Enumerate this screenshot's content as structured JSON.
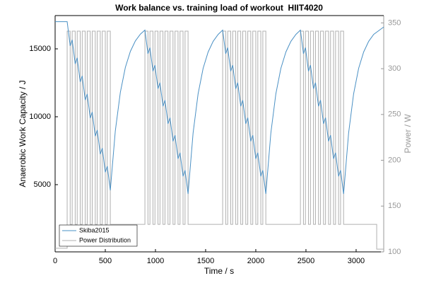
{
  "chart_data": {
    "type": "line",
    "title": "Work balance vs. training load of workout  HIIT4020",
    "x_label": "Time / s",
    "y_label": "Anaerobic Work Capacity / J",
    "y2_label": "Power / W",
    "xlim": [
      0,
      3275
    ],
    "xticks": [
      0,
      500,
      1000,
      1500,
      2000,
      2500,
      3000
    ],
    "ylim": [
      50,
      17450
    ],
    "yticks": [
      5000,
      10000,
      15000
    ],
    "y2lim": [
      100,
      358
    ],
    "y2ticks": [
      100,
      150,
      200,
      250,
      300,
      350
    ],
    "legend": "lower left",
    "series": [
      {
        "name": "Skiba2015",
        "color": "#4a90c4",
        "x": [
          0,
          120,
          150,
          170,
          200,
          220,
          250,
          270,
          300,
          320,
          350,
          370,
          400,
          420,
          450,
          470,
          500,
          520,
          550,
          600,
          650,
          700,
          750,
          800,
          850,
          895,
          925,
          945,
          975,
          995,
          1025,
          1045,
          1075,
          1095,
          1125,
          1145,
          1175,
          1195,
          1225,
          1245,
          1275,
          1295,
          1325,
          1375,
          1425,
          1475,
          1525,
          1575,
          1625,
          1670,
          1700,
          1720,
          1750,
          1770,
          1800,
          1820,
          1850,
          1870,
          1900,
          1920,
          1950,
          1970,
          2000,
          2020,
          2050,
          2070,
          2100,
          2150,
          2200,
          2250,
          2300,
          2350,
          2400,
          2445,
          2475,
          2495,
          2525,
          2545,
          2575,
          2595,
          2625,
          2645,
          2675,
          2695,
          2725,
          2745,
          2775,
          2795,
          2825,
          2845,
          2875,
          2925,
          2975,
          3025,
          3075,
          3125,
          3175,
          3275
        ],
        "values": [
          17000,
          17000,
          15220,
          15670,
          13890,
          14340,
          12560,
          13010,
          11230,
          11680,
          9900,
          10350,
          8570,
          9020,
          7240,
          7690,
          5910,
          6360,
          4580,
          8964,
          11796,
          13634,
          14814,
          15584,
          16085,
          16380,
          14640,
          15090,
          13350,
          13800,
          12060,
          12510,
          10770,
          11220,
          9480,
          9930,
          8190,
          8640,
          6900,
          7350,
          5610,
          6060,
          4320,
          8796,
          11687,
          13564,
          14768,
          15554,
          16065,
          16380,
          14640,
          15090,
          13350,
          13800,
          12060,
          12510,
          10770,
          11220,
          9480,
          9930,
          8190,
          8640,
          6900,
          7350,
          5610,
          6060,
          4320,
          8796,
          11687,
          13564,
          14768,
          15554,
          16065,
          16380,
          14640,
          15090,
          13350,
          13800,
          12060,
          12510,
          10770,
          11220,
          9480,
          9930,
          8190,
          8640,
          6900,
          7350,
          5610,
          6060,
          4320,
          8796,
          11687,
          13564,
          14768,
          15554,
          16065,
          16610
        ]
      },
      {
        "name": "Power Distribution",
        "color": "#b0b0b0",
        "axis": "y2",
        "step": true,
        "x": [
          0,
          120,
          150,
          170,
          200,
          220,
          250,
          270,
          300,
          320,
          350,
          370,
          400,
          420,
          450,
          470,
          500,
          520,
          550,
          895,
          925,
          945,
          975,
          995,
          1025,
          1045,
          1075,
          1095,
          1125,
          1145,
          1175,
          1195,
          1225,
          1245,
          1275,
          1295,
          1325,
          1670,
          1700,
          1720,
          1750,
          1770,
          1800,
          1820,
          1850,
          1870,
          1900,
          1920,
          1950,
          1970,
          2000,
          2020,
          2050,
          2070,
          2100,
          2445,
          2475,
          2495,
          2525,
          2545,
          2575,
          2595,
          2625,
          2645,
          2675,
          2695,
          2725,
          2745,
          2775,
          2795,
          2825,
          2845,
          2875,
          3205
        ],
        "values": [
          104,
          341,
          130,
          341,
          130,
          341,
          130,
          341,
          130,
          341,
          130,
          341,
          130,
          341,
          130,
          341,
          130,
          341,
          130,
          341,
          130,
          341,
          130,
          341,
          130,
          341,
          130,
          341,
          130,
          341,
          130,
          341,
          130,
          341,
          130,
          341,
          130,
          341,
          130,
          341,
          130,
          341,
          130,
          341,
          130,
          341,
          130,
          341,
          130,
          341,
          130,
          341,
          130,
          341,
          130,
          341,
          130,
          341,
          130,
          341,
          130,
          341,
          130,
          341,
          130,
          341,
          130,
          341,
          130,
          341,
          130,
          341,
          130,
          103
        ]
      }
    ]
  }
}
